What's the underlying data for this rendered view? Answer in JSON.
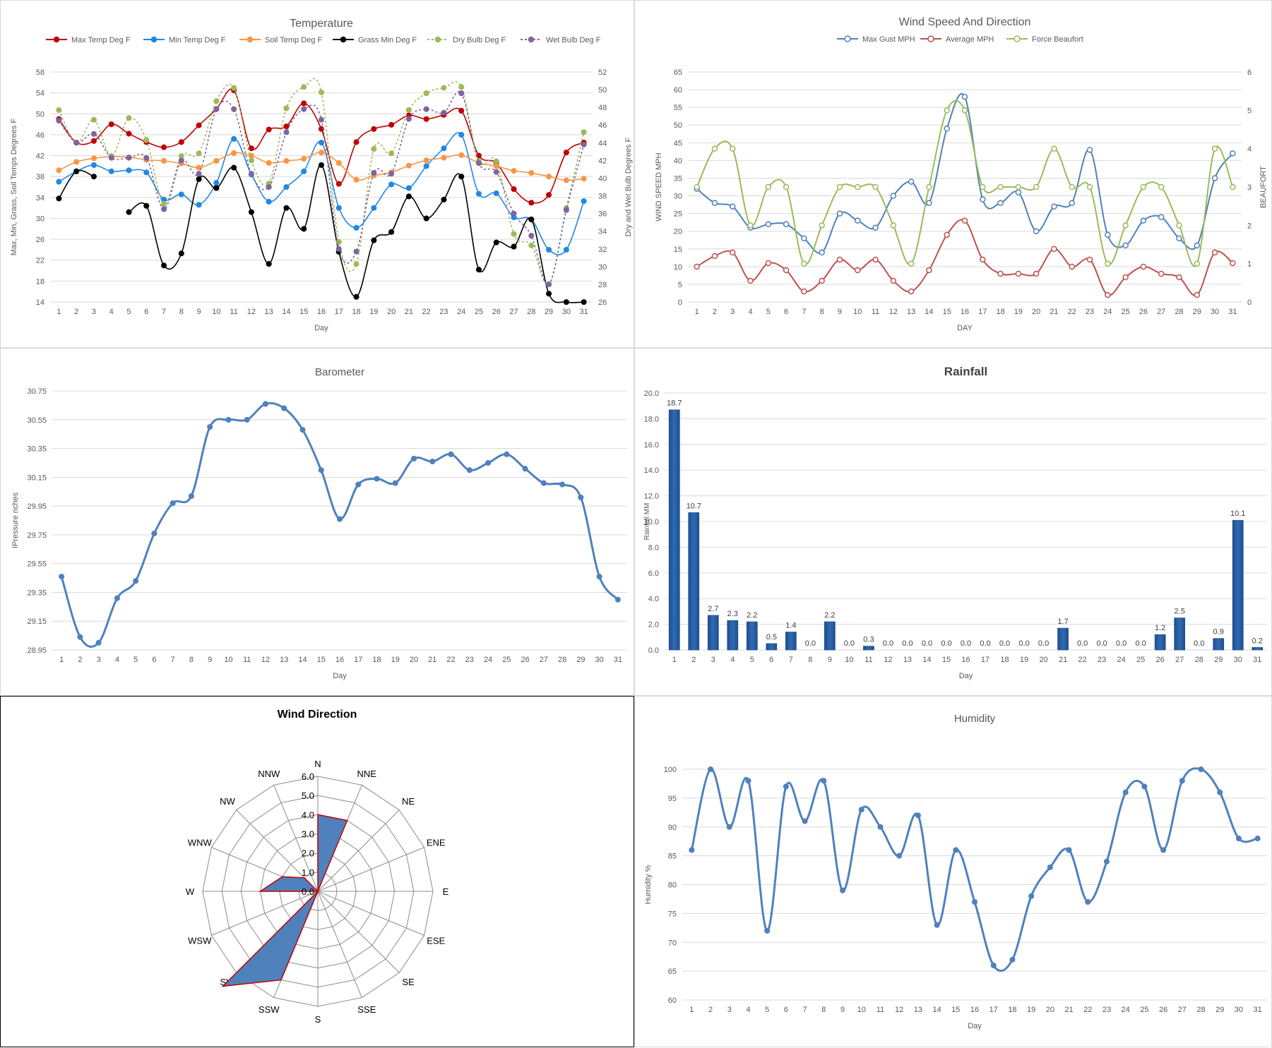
{
  "temperature": {
    "chart_data": {
      "type": "line",
      "title": "Temperature",
      "xlabel": "Day",
      "ylabel": "Max, Min, Grass, Soil Temps Degrees F",
      "y2label": "Dry and Wet Bulb Degrees F",
      "x": [
        1,
        2,
        3,
        4,
        5,
        6,
        7,
        8,
        9,
        10,
        11,
        12,
        13,
        14,
        15,
        16,
        17,
        18,
        19,
        20,
        21,
        22,
        23,
        24,
        25,
        26,
        27,
        28,
        29,
        30,
        31
      ],
      "ylim": [
        14,
        58
      ],
      "yticks": [
        14,
        18,
        22,
        26,
        30,
        34,
        38,
        42,
        46,
        50,
        54,
        58
      ],
      "y2lim": [
        26,
        52
      ],
      "y2ticks": [
        26,
        28,
        30,
        32,
        34,
        36,
        38,
        40,
        42,
        44,
        46,
        48,
        50,
        52
      ],
      "legend_position": "top",
      "grid": true,
      "series": [
        {
          "name": "Max Temp Deg F",
          "axis": "left",
          "color": "#c00000",
          "dash": false,
          "values": [
            49.0,
            44.5,
            44.8,
            48.0,
            46.2,
            44.6,
            43.6,
            44.6,
            47.8,
            50.9,
            54.5,
            43.4,
            47.0,
            47.6,
            52.0,
            47.1,
            36.6,
            44.6,
            47.1,
            47.9,
            49.7,
            49.0,
            49.8,
            50.6,
            42.0,
            40.6,
            35.6,
            33.0,
            34.5,
            42.6,
            44.5
          ]
        },
        {
          "name": "Min Temp Deg F",
          "axis": "left",
          "color": "#1e88e5",
          "dash": false,
          "values": [
            37.0,
            39.0,
            40.2,
            39.0,
            39.2,
            38.8,
            33.6,
            34.6,
            32.6,
            36.8,
            45.2,
            38.4,
            33.2,
            36.0,
            39.0,
            44.5,
            32.0,
            28.2,
            32.0,
            36.5,
            35.8,
            40.0,
            43.4,
            46.0,
            34.7,
            34.8,
            30.2,
            29.8,
            24.0,
            24.0,
            33.3
          ]
        },
        {
          "name": "Soil Temp Deg F",
          "axis": "left",
          "color": "#f79646",
          "dash": false,
          "values": [
            39.2,
            40.8,
            41.5,
            41.8,
            41.7,
            41.2,
            41.0,
            40.5,
            39.7,
            41.0,
            42.5,
            42.0,
            40.6,
            41.0,
            41.4,
            42.6,
            40.6,
            37.4,
            38.2,
            38.8,
            40.1,
            41.1,
            41.6,
            42.1,
            40.6,
            40.0,
            39.1,
            38.7,
            38.0,
            37.3,
            37.6
          ]
        },
        {
          "name": "Grass Min Deg F",
          "axis": "left",
          "color": "#000000",
          "dash": false,
          "values": [
            33.8,
            39.0,
            38.0,
            null,
            31.2,
            32.4,
            21.0,
            23.3,
            37.5,
            35.8,
            39.7,
            31.2,
            21.3,
            32.0,
            28.0,
            40.2,
            23.6,
            15.0,
            25.8,
            27.4,
            34.2,
            30.0,
            33.6,
            38.0,
            20.2,
            25.4,
            24.6,
            29.8,
            15.6,
            14.0,
            14.0
          ]
        },
        {
          "name": "Dry Bulb Deg F",
          "axis": "right",
          "color": "#9bbb59",
          "dash": true,
          "values": [
            47.7,
            44.0,
            46.6,
            42.5,
            46.8,
            44.3,
            37.1,
            42.5,
            42.8,
            48.7,
            50.2,
            42.0,
            39.4,
            47.9,
            50.3,
            49.7,
            32.8,
            30.3,
            43.3,
            42.8,
            47.7,
            49.6,
            50.2,
            50.3,
            41.9,
            41.9,
            33.7,
            32.4,
            28.0,
            36.6,
            45.2
          ]
        },
        {
          "name": "Wet Bulb Deg F",
          "axis": "right",
          "color": "#8064a2",
          "dash": true,
          "values": [
            46.5,
            44.0,
            45.0,
            42.3,
            42.3,
            42.3,
            36.5,
            42.0,
            40.5,
            47.8,
            47.8,
            40.5,
            39.0,
            45.2,
            47.8,
            46.6,
            32.0,
            31.7,
            40.6,
            40.5,
            46.7,
            47.8,
            47.4,
            49.6,
            41.7,
            40.7,
            36.0,
            33.5,
            28.0,
            36.4,
            43.8
          ]
        }
      ]
    }
  },
  "wind": {
    "chart_data": {
      "type": "line",
      "title": "Wind Speed And Direction",
      "xlabel": "DAY",
      "ylabel": "WIND SPEED MPH",
      "y2label": "BEAUFORT",
      "x": [
        1,
        2,
        3,
        4,
        5,
        6,
        7,
        8,
        9,
        10,
        11,
        12,
        13,
        14,
        15,
        16,
        17,
        18,
        19,
        20,
        21,
        22,
        23,
        24,
        25,
        26,
        27,
        28,
        29,
        30,
        31
      ],
      "ylim": [
        0,
        65
      ],
      "yticks": [
        0,
        5,
        10,
        15,
        20,
        25,
        30,
        35,
        40,
        45,
        50,
        55,
        60,
        65
      ],
      "y2lim": [
        0,
        6
      ],
      "y2ticks": [
        0,
        1,
        2,
        3,
        4,
        5,
        6
      ],
      "legend_position": "top",
      "grid": true,
      "series": [
        {
          "name": "Max Gust MPH",
          "axis": "left",
          "color": "#4f81bd",
          "values": [
            32,
            28,
            27,
            21,
            22,
            22,
            18,
            14,
            25,
            23,
            21,
            30,
            34,
            28,
            49,
            58,
            29,
            28,
            31,
            20,
            27,
            28,
            43,
            19,
            16,
            23,
            24,
            18,
            16,
            35,
            42
          ]
        },
        {
          "name": "Average MPH",
          "axis": "left",
          "color": "#c0504d",
          "values": [
            10,
            13,
            14,
            6,
            11,
            9,
            3,
            6,
            12,
            9,
            12,
            6,
            3,
            9,
            19,
            23,
            12,
            8,
            8,
            8,
            15,
            10,
            12,
            2,
            7,
            10,
            8,
            7,
            2,
            14,
            11
          ]
        },
        {
          "name": "Force Beaufort",
          "axis": "right",
          "color": "#9bbb59",
          "values": [
            3,
            4,
            4,
            2,
            3,
            3,
            1,
            2,
            3,
            3,
            3,
            2,
            1,
            3,
            5,
            5,
            3,
            3,
            3,
            3,
            4,
            3,
            3,
            1,
            2,
            3,
            3,
            2,
            1,
            4,
            3
          ]
        }
      ]
    }
  },
  "barometer": {
    "chart_data": {
      "type": "line",
      "title": "Barometer",
      "xlabel": "Day",
      "ylabel": "IPressure nches",
      "x": [
        1,
        2,
        3,
        4,
        5,
        6,
        7,
        8,
        9,
        10,
        11,
        12,
        13,
        14,
        15,
        16,
        17,
        18,
        19,
        20,
        21,
        22,
        23,
        24,
        25,
        26,
        27,
        28,
        29,
        30,
        31
      ],
      "ylim": [
        28.95,
        30.75
      ],
      "yticks": [
        "28.95",
        "29.15",
        "29.35",
        "29.55",
        "29.75",
        "29.95",
        "30.15",
        "30.35",
        "30.55",
        "30.75"
      ],
      "grid": true,
      "series": [
        {
          "name": "Pressure",
          "color": "#4f81bd",
          "values": [
            29.46,
            29.04,
            29.0,
            29.31,
            29.43,
            29.76,
            29.97,
            30.02,
            30.5,
            30.55,
            30.55,
            30.66,
            30.63,
            30.48,
            30.2,
            29.86,
            30.1,
            30.14,
            30.11,
            30.28,
            30.26,
            30.31,
            30.2,
            30.25,
            30.31,
            30.21,
            30.11,
            30.1,
            30.01,
            29.46,
            29.3
          ]
        }
      ]
    }
  },
  "rainfall": {
    "chart_data": {
      "type": "bar",
      "title": "Rainfall",
      "xlabel": "Day",
      "ylabel": "Rainfall MM",
      "categories": [
        "1",
        "2",
        "3",
        "4",
        "5",
        "6",
        "7",
        "8",
        "9",
        "10",
        "11",
        "12",
        "13",
        "14",
        "15",
        "16",
        "17",
        "18",
        "19",
        "20",
        "21",
        "22",
        "23",
        "24",
        "25",
        "26",
        "27",
        "28",
        "29",
        "30",
        "31"
      ],
      "values": [
        18.7,
        10.7,
        2.7,
        2.3,
        2.2,
        0.5,
        1.4,
        0.0,
        2.2,
        0.0,
        0.3,
        0.0,
        0.0,
        0.0,
        0.0,
        0.0,
        0.0,
        0.0,
        0.0,
        0.0,
        1.7,
        0.0,
        0.0,
        0.0,
        0.0,
        1.2,
        2.5,
        0.0,
        0.9,
        10.1,
        0.2
      ],
      "value_labels": [
        "18.7",
        "10.7",
        "2.7",
        "2.3",
        "2.2",
        "0.5",
        "1.4",
        "0.0",
        "2.2",
        "0.0",
        "0.3",
        "0.0",
        "0.0",
        "0.0",
        "0.0",
        "0.0",
        "0.0",
        "0.0",
        "0.0",
        "0.0",
        "1.7",
        "0.0",
        "0.0",
        "0.0",
        "0.0",
        "1.2",
        "2.5",
        "0.0",
        "0.9",
        "10.1",
        "0.2"
      ],
      "ylim": [
        0,
        20
      ],
      "yticks": [
        "0.0",
        "2.0",
        "4.0",
        "6.0",
        "8.0",
        "10.0",
        "12.0",
        "14.0",
        "16.0",
        "18.0",
        "20.0"
      ],
      "bar_color": "#2e6bb5",
      "grid": true
    }
  },
  "wind_direction": {
    "chart_data": {
      "type": "radar",
      "title": "Wind Direction",
      "categories": [
        "N",
        "NNE",
        "NE",
        "ENE",
        "E",
        "ESE",
        "SE",
        "SSE",
        "S",
        "SSW",
        "SW",
        "WSW",
        "W",
        "WNW",
        "NW",
        "NNW"
      ],
      "values": [
        4,
        4,
        0,
        0,
        0,
        0,
        0,
        0,
        0,
        5,
        7,
        0,
        3,
        2,
        1,
        0
      ],
      "rlim": [
        0,
        6
      ],
      "rticks": [
        "0.0",
        "1.0",
        "2.0",
        "3.0",
        "4.0",
        "5.0",
        "6.0"
      ],
      "fill_color": "#4f81bd",
      "edge_color": "#c00000"
    }
  },
  "humidity": {
    "chart_data": {
      "type": "line",
      "title": "Humidity",
      "xlabel": "Day",
      "ylabel": "Humidity %",
      "x": [
        1,
        2,
        3,
        4,
        5,
        6,
        7,
        8,
        9,
        10,
        11,
        12,
        13,
        14,
        15,
        16,
        17,
        18,
        19,
        20,
        21,
        22,
        23,
        24,
        25,
        26,
        27,
        28,
        29,
        30,
        31
      ],
      "ylim": [
        60,
        100
      ],
      "yticks": [
        60,
        65,
        70,
        75,
        80,
        85,
        90,
        95,
        100
      ],
      "grid": true,
      "series": [
        {
          "name": "Humidity",
          "color": "#4f81bd",
          "values": [
            86,
            100,
            90,
            98,
            72,
            97,
            91,
            98,
            79,
            93,
            90,
            85,
            92,
            73,
            86,
            77,
            66,
            67,
            78,
            83,
            86,
            77,
            84,
            96,
            97,
            86,
            98,
            100,
            96,
            88,
            88
          ]
        }
      ]
    }
  }
}
